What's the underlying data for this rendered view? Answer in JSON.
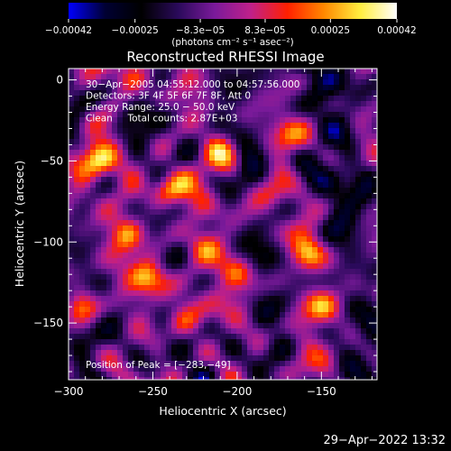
{
  "chart_data": {
    "type": "heatmap",
    "title": "Reconstructed RHESSI Image",
    "xlabel": "Heliocentric X (arcsec)",
    "ylabel": "Heliocentric Y (arcsec)",
    "xlim": [
      -300,
      -117
    ],
    "ylim": [
      -185,
      7
    ],
    "x_ticks": [
      -300,
      -250,
      -200,
      -150
    ],
    "x_tick_labels": [
      "−300",
      "−250",
      "−200",
      "−150"
    ],
    "y_ticks": [
      0,
      -50,
      -100,
      -150
    ],
    "y_tick_labels": [
      "0",
      "−50",
      "−100",
      "−150"
    ],
    "colorbar": {
      "range": [
        -0.00042,
        0.00042
      ],
      "ticks": [
        -0.00042,
        -0.00025,
        -8.3e-05,
        8.3e-05,
        0.00025,
        0.00042
      ],
      "tick_labels": [
        "−0.00042",
        "−0.00025",
        "−8.3e−05",
        "8.3e−05",
        "0.00025",
        "0.00042"
      ],
      "unit_label": "(photons cm⁻² s⁻¹ asec⁻²)",
      "colors": [
        "#0000ff",
        "#000033",
        "#000000",
        "#2a0a5a",
        "#7a1a9a",
        "#c0208a",
        "#ff2000",
        "#ff8800",
        "#ffee40",
        "#ffffff"
      ]
    },
    "annotations": [
      "30−Apr−2005 04:55:12.000 to 04:57:56.000",
      "Detectors: 3F 4F 5F 6F 7F 8F, Att 0",
      "Energy Range: 25.0 − 50.0 keV",
      "Clean     Total counts: 2.87E+03"
    ],
    "peak_label": "Position of Peak = [−283,−49]",
    "peak_position": [
      -283,
      -49
    ],
    "hotspots": [
      {
        "x": -283,
        "y": -49,
        "w": 1.0
      },
      {
        "x": -298,
        "y": -75,
        "w": 0.75
      },
      {
        "x": -265,
        "y": -95,
        "w": 0.9
      },
      {
        "x": -252,
        "y": -122,
        "w": 0.85
      },
      {
        "x": -292,
        "y": -140,
        "w": 0.8
      },
      {
        "x": -240,
        "y": -68,
        "w": 0.95
      },
      {
        "x": -233,
        "y": -148,
        "w": 0.75
      },
      {
        "x": -208,
        "y": -45,
        "w": 0.85
      },
      {
        "x": -198,
        "y": -120,
        "w": 0.8
      },
      {
        "x": -222,
        "y": -102,
        "w": 0.7
      },
      {
        "x": -180,
        "y": -72,
        "w": 0.65
      },
      {
        "x": -158,
        "y": -108,
        "w": 0.85
      },
      {
        "x": -150,
        "y": -140,
        "w": 0.8
      },
      {
        "x": -165,
        "y": -178,
        "w": 0.6
      },
      {
        "x": -128,
        "y": -128,
        "w": 0.55
      },
      {
        "x": -262,
        "y": 2,
        "w": 0.5
      },
      {
        "x": -170,
        "y": -35,
        "w": 0.55
      }
    ]
  },
  "footer_date": "29−Apr−2022 13:32"
}
